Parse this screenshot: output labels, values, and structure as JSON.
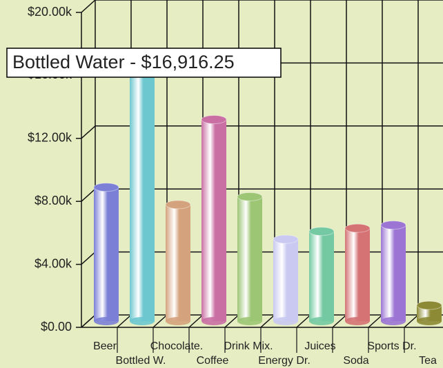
{
  "chart_data": {
    "type": "bar",
    "categories": [
      "Beer",
      "Bottled W.",
      "Chocolate.",
      "Coffee",
      "Drink Mix.",
      "Energy Dr.",
      "Juices",
      "Soda",
      "Sports Dr.",
      "Tea"
    ],
    "values": [
      8500,
      16916.25,
      7400,
      12800,
      7900,
      5200,
      5700,
      5900,
      6100,
      1000
    ],
    "colors": [
      "#7b7fd6",
      "#6cc7cf",
      "#d4a27c",
      "#c96fa3",
      "#9cc574",
      "#c9c9f2",
      "#74c9a2",
      "#d47274",
      "#9b74d4",
      "#8c8a34"
    ],
    "ylim": [
      0,
      20000
    ],
    "yticks": [
      {
        "value": 0,
        "label": "$0.00"
      },
      {
        "value": 4000,
        "label": "$4.00k"
      },
      {
        "value": 8000,
        "label": "$8.00k"
      },
      {
        "value": 12000,
        "label": "$12.00k"
      },
      {
        "value": 16000,
        "label": "$16.00k"
      },
      {
        "value": 20000,
        "label": "$20.00k"
      }
    ],
    "grid": true,
    "tooltip": "Bottled Water - $16,916.25"
  }
}
